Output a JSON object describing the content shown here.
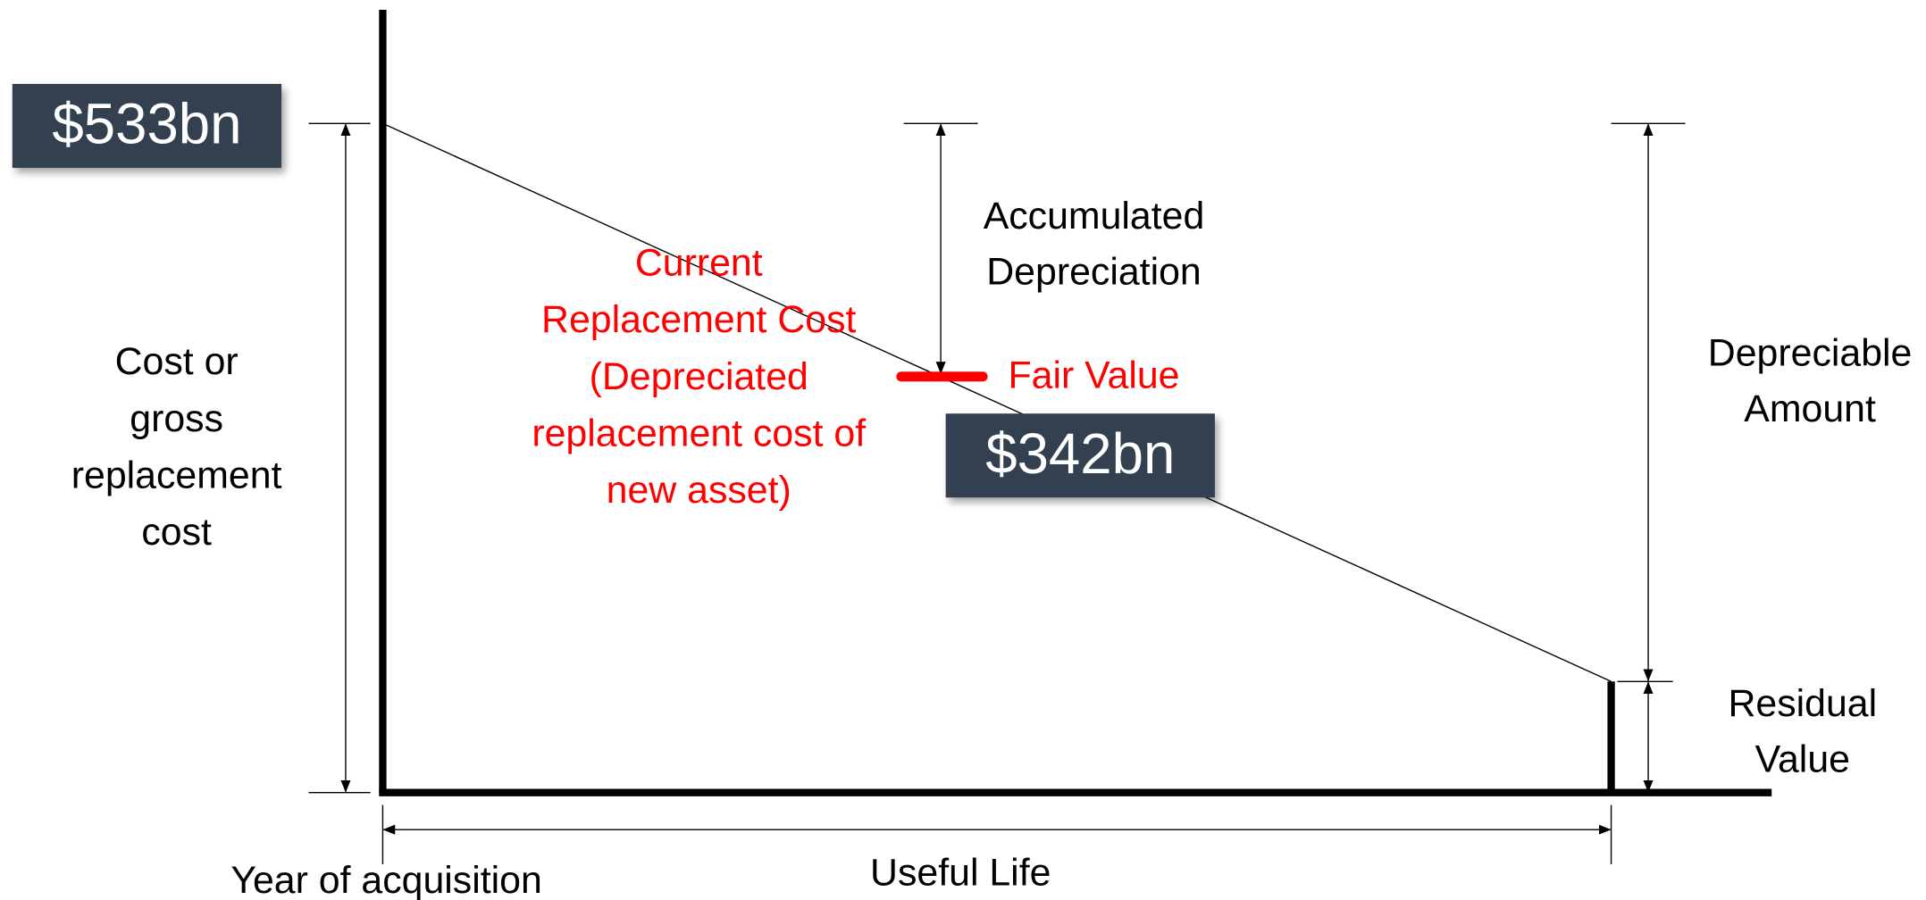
{
  "values": {
    "cost": "$533bn",
    "fair_value": "$342bn"
  },
  "labels": {
    "cost": [
      "Cost or",
      "gross",
      "replacement",
      "cost"
    ],
    "accumulated_depreciation": [
      "Accumulated",
      "Depreciation"
    ],
    "current_replacement_cost": [
      "Current",
      "Replacement Cost",
      "(Depreciated",
      "replacement cost of",
      "new asset)"
    ],
    "fair_value": "Fair Value",
    "depreciable_amount": [
      "Depreciable",
      "Amount"
    ],
    "residual_value": [
      "Residual",
      "Value"
    ],
    "year_of_acquisition": "Year of acquisition",
    "useful_life": "Useful Life"
  }
}
